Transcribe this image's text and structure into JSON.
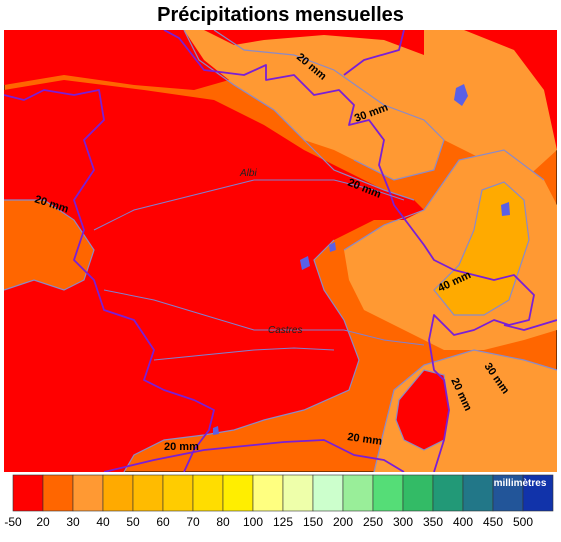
{
  "title": "Précipitations mensuelles",
  "map": {
    "cities": [
      {
        "name": "Albi",
        "key": "albi"
      },
      {
        "name": "Castres",
        "key": "castres"
      }
    ],
    "contour_labels": [
      {
        "text": "20 mm",
        "key": "north"
      },
      {
        "text": "30 mm",
        "key": "north-east"
      },
      {
        "text": "20 mm",
        "key": "center-east"
      },
      {
        "text": "20 mm",
        "key": "west"
      },
      {
        "text": "40 mm",
        "key": "east"
      },
      {
        "text": "20 mm",
        "key": "south-east"
      },
      {
        "text": "30 mm",
        "key": "far-east"
      },
      {
        "text": "20 mm",
        "key": "south"
      },
      {
        "text": "20 mm",
        "key": "south-center"
      }
    ]
  },
  "legend": {
    "unit": "millimètres",
    "classes": [
      "-50",
      "20",
      "30",
      "40",
      "50",
      "60",
      "70",
      "80",
      "100",
      "125",
      "150",
      "200",
      "250",
      "300",
      "350",
      "400",
      "450",
      "500"
    ],
    "colors": [
      "#ff0000",
      "#ff6600",
      "#ff9933",
      "#ffaa00",
      "#ffbb00",
      "#ffcc00",
      "#ffdd00",
      "#ffee00",
      "#ffff80",
      "#eeffaa",
      "#ccffcc",
      "#99ee99",
      "#55dd77",
      "#33bb66",
      "#229977",
      "#227788",
      "#225599",
      "#1133aa"
    ]
  }
}
